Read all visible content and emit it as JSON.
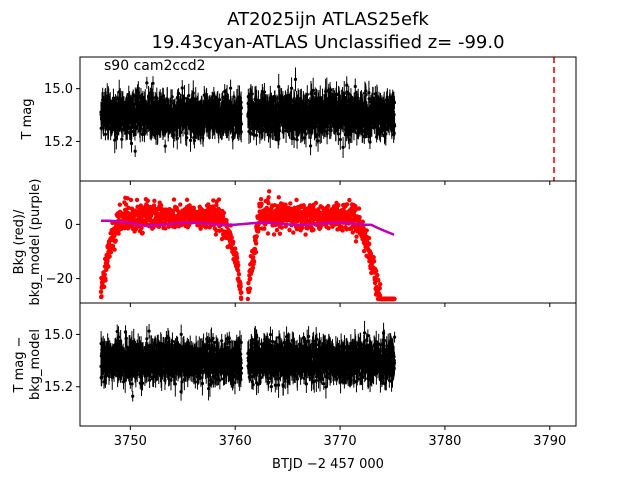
{
  "title": {
    "line1": "AT2025ijn  ATLAS25efk",
    "line2": "19.43cyan-ATLAS Unclassified z= -99.0"
  },
  "chart_data": {
    "type": "scatter",
    "xlabel": "BTJD −2 457 000",
    "xlim": [
      3745.2,
      3792.5
    ],
    "xticks": [
      3750,
      3760,
      3770,
      3780,
      3790
    ],
    "xtick_labels": [
      "3750",
      "3760",
      "3770",
      "3780",
      "3790"
    ],
    "panels": [
      {
        "id": "tmag",
        "annotation": "s90 cam2ccd2",
        "ylabel": [
          "T mag"
        ],
        "ylim": [
          15.35,
          14.88
        ],
        "yticks": [
          15.0,
          15.2
        ],
        "ytick_labels": [
          "15.0",
          "15.2"
        ],
        "series": [
          {
            "label": "T mag",
            "color": "#000000",
            "x_range": [
              3747.2,
              3775.2
            ],
            "gap": [
              3760.6,
              3761.2
            ],
            "center": 15.1,
            "spread": 0.08,
            "errorbars": true
          }
        ],
        "vline": {
          "x": 3790.4,
          "color": "#ff0000",
          "style": "dashed"
        }
      },
      {
        "id": "bkg",
        "ylabel": [
          "Bkg (red)/",
          "bkg_model (purple)"
        ],
        "ylim": [
          -29,
          16
        ],
        "yticks": [
          0,
          -20
        ],
        "ytick_labels": [
          "0",
          "−20"
        ],
        "series": [
          {
            "label": "Bkg",
            "color": "#ff0000",
            "x_range": [
              3747.2,
              3775.2
            ],
            "gap": [
              3760.6,
              3761.2
            ]
          },
          {
            "label": "bkg_model",
            "color": "#bf00bf",
            "x_range": [
              3747.2,
              3775.2
            ],
            "gap": [
              3760.6,
              3761.2
            ]
          }
        ]
      },
      {
        "id": "tmag_minus_model",
        "ylabel": [
          "T mag −",
          "bkg_model"
        ],
        "ylim": [
          15.35,
          14.88
        ],
        "yticks": [
          15.0,
          15.2
        ],
        "ytick_labels": [
          "15.0",
          "15.2"
        ],
        "series": [
          {
            "label": "T mag − bkg_model",
            "color": "#000000",
            "x_range": [
              3747.2,
              3775.2
            ],
            "gap": [
              3760.6,
              3761.2
            ],
            "center": 15.1,
            "spread": 0.08,
            "errorbars": true
          }
        ]
      }
    ]
  }
}
